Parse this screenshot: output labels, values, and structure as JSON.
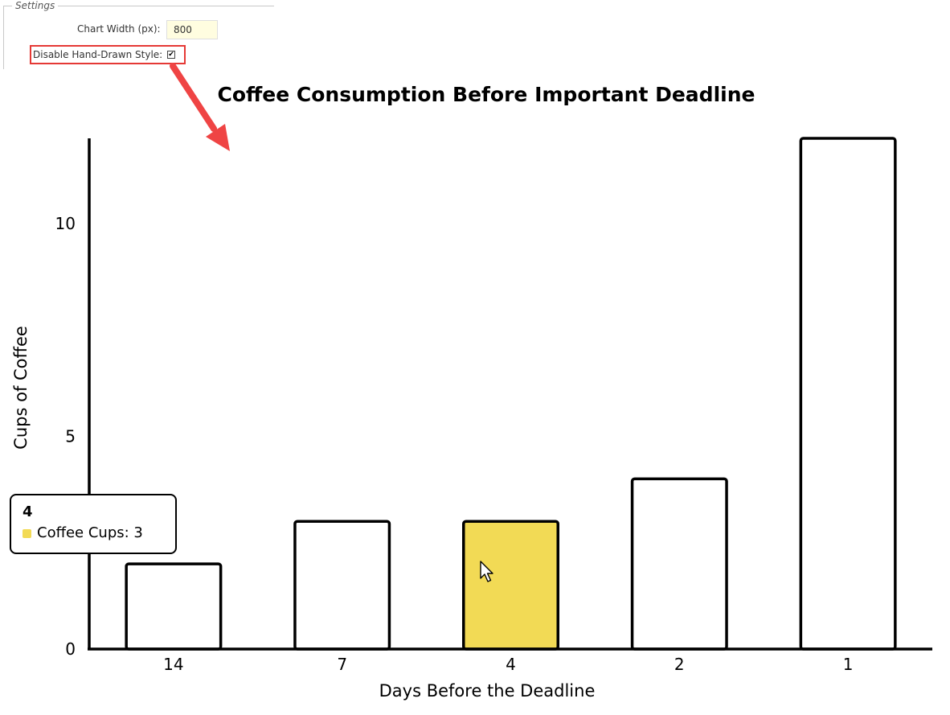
{
  "settings": {
    "legend": "Settings",
    "chart_width_label": "Chart Width (px):",
    "chart_width_value": "800",
    "disable_hand_drawn_label": "Disable Hand-Drawn Style:",
    "disable_hand_drawn_checked": true,
    "check_mark": "✔"
  },
  "annotation": {
    "color": "#ef4444"
  },
  "tooltip": {
    "title": "4",
    "series_label": "Coffee Cups: 3"
  },
  "chart_data": {
    "type": "bar",
    "title": "Coffee Consumption Before Important Deadline",
    "xlabel": "Days Before the Deadline",
    "ylabel": "Cups of Coffee",
    "categories": [
      "14",
      "7",
      "4",
      "2",
      "1"
    ],
    "series": [
      {
        "values": [
          2,
          3,
          3,
          4,
          12
        ]
      }
    ],
    "ylim": [
      0,
      12
    ],
    "yticks": [
      0,
      5,
      10
    ],
    "grid": false,
    "highlighted_category": "4",
    "colors": {
      "bar_fill": "#ffffff",
      "bar_stroke": "#000000",
      "highlight_fill": "#f2da55"
    }
  }
}
